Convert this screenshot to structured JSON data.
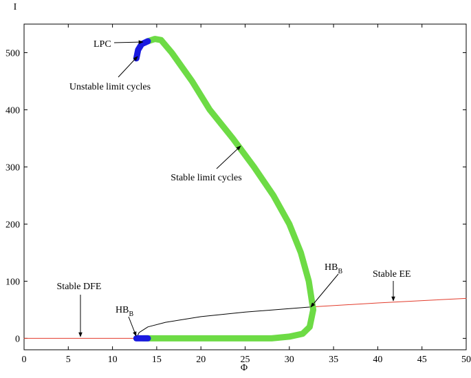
{
  "chart_data": {
    "type": "line",
    "x_label": "Φ",
    "y_label": "I",
    "xlim": [
      0,
      50
    ],
    "ylim": [
      -20,
      550
    ],
    "xticks": [
      0,
      5,
      10,
      15,
      20,
      25,
      30,
      35,
      40,
      45,
      50
    ],
    "yticks": [
      0,
      100,
      200,
      300,
      400,
      500
    ],
    "grid": false,
    "series": [
      {
        "color": "#e23a2a",
        "x": [
          0,
          12.7
        ],
        "values": [
          0,
          0
        ]
      },
      {
        "color": "#000000",
        "x": [
          12.7,
          13,
          14,
          16,
          20,
          25,
          30,
          32.5
        ],
        "values": [
          0,
          10,
          20,
          28,
          38,
          46,
          52,
          55
        ]
      },
      {
        "color": "#e23a2a",
        "x": [
          32.5,
          40,
          50
        ],
        "values": [
          55,
          62,
          70
        ]
      },
      {
        "color": "#6ddb45",
        "x": [
          13.5,
          20,
          28,
          30,
          31.5,
          32.3,
          32.7,
          32.2,
          31.3,
          30,
          28.2,
          26,
          23.6,
          21,
          19,
          16.7,
          15.5,
          14.8,
          14
        ],
        "values": [
          0,
          0,
          0,
          3,
          8,
          20,
          50,
          100,
          150,
          200,
          250,
          300,
          350,
          400,
          450,
          500,
          522,
          524,
          520
        ]
      },
      {
        "color": "#1a1ae0",
        "x": [
          12.7,
          14
        ],
        "values": [
          0,
          0
        ]
      },
      {
        "color": "#1a1ae0",
        "x": [
          12.7,
          12.9,
          13.3,
          14
        ],
        "values": [
          490,
          505,
          515,
          520
        ]
      }
    ],
    "annotations": [
      {
        "text": "LPC"
      },
      {
        "text": "Unstable limit cycles"
      },
      {
        "text": "Stable limit cycles"
      },
      {
        "text": "Stable DFE"
      },
      {
        "text": "HB",
        "sub": "B"
      },
      {
        "text": "HB",
        "sub": "B"
      },
      {
        "text": "Stable EE"
      }
    ]
  }
}
